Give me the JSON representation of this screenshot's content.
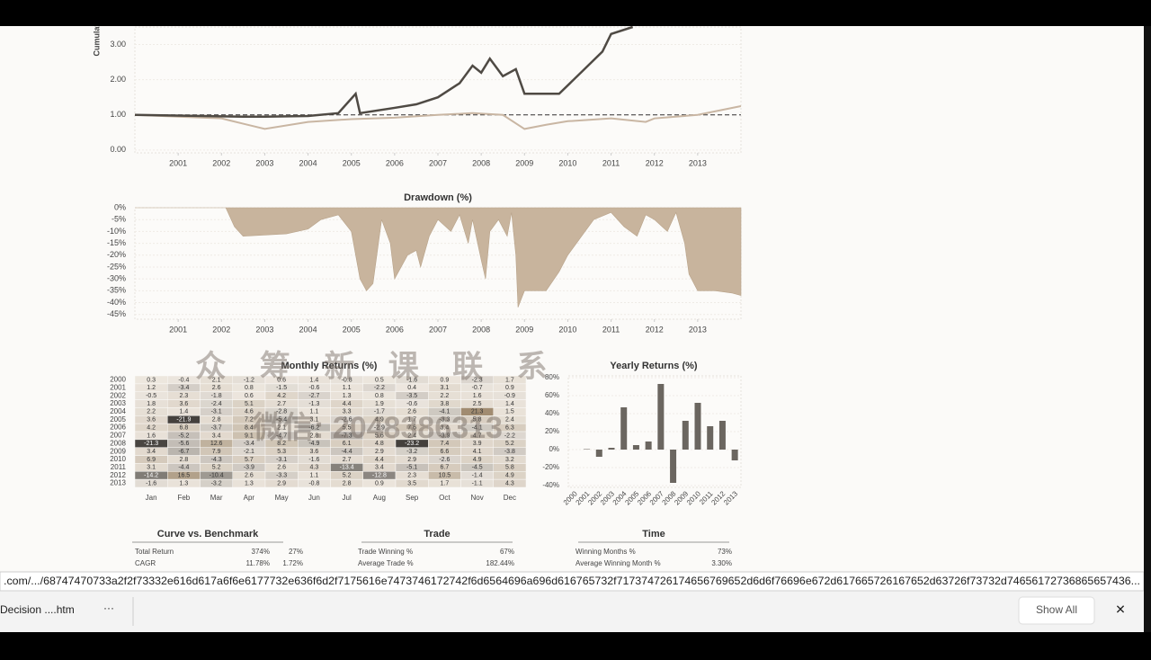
{
  "chart_data": [
    {
      "type": "line",
      "y_label": "Cumulative Returns",
      "xlim": [
        2000,
        2014
      ],
      "xticks": [
        2001,
        2002,
        2003,
        2004,
        2005,
        2006,
        2007,
        2008,
        2009,
        2010,
        2011,
        2012,
        2013
      ],
      "ylim": [
        -0.08,
        3.5
      ],
      "yticks": [
        {
          "value": 0,
          "label": "0.00"
        },
        {
          "value": 1,
          "label": "1.00"
        },
        {
          "value": 2,
          "label": "2.00"
        },
        {
          "value": 3,
          "label": "3.00"
        }
      ],
      "reference_line": 1,
      "grid": true,
      "series": [
        {
          "color": "#4f4a44",
          "x": [
            2000,
            2002.5,
            2003,
            2004,
            2004.7,
            2005.1,
            2005.2,
            2006,
            2006.5,
            2007,
            2007.5,
            2007.8,
            2008,
            2008.2,
            2008.5,
            2008.8,
            2009,
            2009.8,
            2010.3,
            2010.8,
            2011,
            2011.5
          ],
          "values": [
            1.0,
            0.95,
            0.95,
            0.97,
            1.05,
            1.6,
            1.05,
            1.2,
            1.3,
            1.5,
            1.9,
            2.4,
            2.2,
            2.6,
            2.1,
            2.3,
            1.6,
            1.6,
            2.2,
            2.8,
            3.3,
            3.5
          ]
        },
        {
          "color": "#c9b6a3",
          "x": [
            2000,
            2001,
            2002,
            2002.5,
            2003,
            2004,
            2005,
            2006,
            2007,
            2007.8,
            2008.5,
            2009,
            2009.5,
            2010,
            2011,
            2011.8,
            2012,
            2013,
            2014
          ],
          "values": [
            1.0,
            0.95,
            0.9,
            0.75,
            0.6,
            0.8,
            0.88,
            0.92,
            1.0,
            1.05,
            1.0,
            0.6,
            0.72,
            0.82,
            0.9,
            0.8,
            0.9,
            1.0,
            1.25
          ]
        }
      ]
    },
    {
      "type": "area",
      "title": "Drawdown (%)",
      "xlim": [
        2000,
        2014
      ],
      "xticks": [
        2001,
        2002,
        2003,
        2004,
        2005,
        2006,
        2007,
        2008,
        2009,
        2010,
        2011,
        2012,
        2013
      ],
      "ylim": [
        -47,
        0
      ],
      "yticks": [
        {
          "value": 0,
          "label": "0%"
        },
        {
          "value": -5,
          "label": "-5%"
        },
        {
          "value": -10,
          "label": "-10%"
        },
        {
          "value": -15,
          "label": "-15%"
        },
        {
          "value": -20,
          "label": "-20%"
        },
        {
          "value": -25,
          "label": "-25%"
        },
        {
          "value": -30,
          "label": "-30%"
        },
        {
          "value": -35,
          "label": "-35%"
        },
        {
          "value": -40,
          "label": "-40%"
        },
        {
          "value": -45,
          "label": "-45%"
        }
      ],
      "grid": true,
      "color": "#c8b49d",
      "x": [
        2000,
        2002.1,
        2002.3,
        2002.5,
        2003.5,
        2004,
        2004.3,
        2004.7,
        2005,
        2005.2,
        2005.35,
        2005.5,
        2005.7,
        2005.9,
        2006,
        2006.3,
        2006.5,
        2006.6,
        2006.8,
        2007,
        2007.3,
        2007.5,
        2007.7,
        2007.8,
        2008,
        2008.1,
        2008.2,
        2008.4,
        2008.6,
        2008.7,
        2008.8,
        2008.85,
        2009,
        2009.5,
        2009.8,
        2010,
        2010.2,
        2010.4,
        2010.6,
        2011,
        2011.3,
        2011.6,
        2011.8,
        2012,
        2012.3,
        2012.5,
        2012.7,
        2012.8,
        2013,
        2013.4,
        2013.8,
        2014
      ],
      "values": [
        0,
        0,
        -8,
        -12,
        -11,
        -9,
        -5,
        -3,
        -10,
        -30,
        -35,
        -32,
        -5,
        -15,
        -30,
        -20,
        -18,
        -25,
        -12,
        -5,
        -10,
        -3,
        -15,
        -5,
        -22,
        -30,
        -10,
        -5,
        -12,
        -2,
        -20,
        -42,
        -35,
        -35,
        -27,
        -20,
        -15,
        -10,
        -5,
        -2,
        -8,
        -12,
        -3,
        -5,
        -10,
        -2,
        -15,
        -28,
        -35,
        -35,
        -36,
        -37
      ]
    },
    {
      "type": "heatmap",
      "title": "Monthly Returns (%)",
      "rows": [
        "2000",
        "2001",
        "2002",
        "2003",
        "2004",
        "2005",
        "2006",
        "2007",
        "2008",
        "2009",
        "2010",
        "2011",
        "2012",
        "2013"
      ],
      "columns": [
        "Jan",
        "Feb",
        "Mar",
        "Apr",
        "May",
        "Jun",
        "Jul",
        "Aug",
        "Sep",
        "Oct",
        "Nov",
        "Dec"
      ],
      "values": [
        [
          0.3,
          -0.4,
          2.1,
          -1.2,
          0.6,
          1.4,
          -0.8,
          0.5,
          -1.6,
          0.9,
          -2.3,
          1.7
        ],
        [
          1.2,
          -3.4,
          2.6,
          0.8,
          -1.5,
          -0.6,
          1.1,
          -2.2,
          0.4,
          3.1,
          -0.7,
          0.9
        ],
        [
          -0.5,
          2.3,
          -1.8,
          0.6,
          4.2,
          -2.7,
          1.3,
          0.8,
          -3.5,
          2.2,
          1.6,
          -0.9
        ],
        [
          1.8,
          3.6,
          -2.4,
          5.1,
          2.7,
          -1.3,
          4.4,
          1.9,
          -0.6,
          3.8,
          2.5,
          1.4
        ],
        [
          2.2,
          1.4,
          -3.1,
          4.6,
          -2.8,
          1.1,
          3.3,
          -1.7,
          2.6,
          -4.1,
          21.3,
          1.5
        ],
        [
          3.6,
          -21.9,
          2.8,
          7.2,
          -5.4,
          3.1,
          -2.6,
          4.9,
          1.7,
          -3.3,
          5.8,
          2.4
        ],
        [
          4.2,
          6.8,
          -3.7,
          8.4,
          2.1,
          -6.2,
          5.5,
          -2.9,
          7.6,
          3.4,
          -4.1,
          6.3
        ],
        [
          1.6,
          -5.2,
          3.4,
          9.1,
          -4.7,
          2.8,
          -7.3,
          5.6,
          2.4,
          -3.9,
          4.7,
          -2.2
        ],
        [
          -21.3,
          -5.6,
          12.6,
          -3.4,
          8.2,
          -4.9,
          6.1,
          4.8,
          -23.2,
          7.4,
          3.9,
          5.2
        ],
        [
          3.4,
          -6.7,
          7.9,
          -2.1,
          5.3,
          3.6,
          -4.4,
          2.9,
          -3.2,
          6.6,
          4.1,
          -3.8
        ],
        [
          6.9,
          2.8,
          -4.3,
          5.7,
          -3.1,
          -1.6,
          2.7,
          4.4,
          2.9,
          -2.6,
          4.9,
          3.2
        ],
        [
          3.1,
          -4.4,
          5.2,
          -3.9,
          2.6,
          4.3,
          -13.4,
          3.4,
          -5.1,
          6.7,
          -4.5,
          5.8
        ],
        [
          -14.2,
          16.5,
          -10.4,
          2.6,
          -3.3,
          1.1,
          5.2,
          -12.8,
          2.3,
          10.5,
          -1.4,
          4.9
        ],
        [
          -1.6,
          1.3,
          -3.2,
          1.3,
          2.9,
          -0.8,
          2.8,
          0.9,
          3.5,
          1.7,
          -1.1,
          4.3
        ]
      ]
    },
    {
      "type": "bar",
      "title": "Yearly Returns (%)",
      "color": "#6b6660",
      "categories": [
        "2000",
        "2001",
        "2002",
        "2003",
        "2004",
        "2005",
        "2006",
        "2007",
        "2008",
        "2009",
        "2010",
        "2011",
        "2012",
        "2013"
      ],
      "values": [
        0,
        0.5,
        -8,
        2,
        47,
        5,
        9,
        73,
        -37,
        32,
        52,
        26,
        32,
        -12
      ],
      "ylim": [
        -42,
        82
      ],
      "yticks": [
        {
          "value": -40,
          "label": "-40%"
        },
        {
          "value": -20,
          "label": "-20%"
        },
        {
          "value": 0,
          "label": "0%"
        },
        {
          "value": 20,
          "label": "20%"
        },
        {
          "value": 40,
          "label": "40%"
        },
        {
          "value": 60,
          "label": "60%"
        },
        {
          "value": 80,
          "label": "80%"
        }
      ],
      "grid": true
    }
  ],
  "tables": [
    {
      "title": "Curve vs. Benchmark",
      "rows": [
        [
          "Total Return",
          "374%",
          "27%"
        ],
        [
          "CAGR",
          "11.78%",
          "1.72%"
        ]
      ]
    },
    {
      "title": "Trade",
      "rows": [
        [
          "Trade Winning %",
          "67%"
        ],
        [
          "Average Trade %",
          "182.44%"
        ]
      ]
    },
    {
      "title": "Time",
      "rows": [
        [
          "Winning Months %",
          "73%"
        ],
        [
          "Average Winning Month %",
          "3.30%"
        ]
      ]
    }
  ],
  "watermark": [
    "众 筹 新 课 联 系",
    "微信: 2048386313"
  ],
  "status_url": ".com/.../68747470733a2f2f73332e616d617a6f6e6177732e636f6d2f7175616e7473746172742f6d6564696a696d616765732f717374726174656769652d6d6f76696e672d617665726167652d63726f73732d74656172736865657436...",
  "download_bar": {
    "file": "Decision ....htm",
    "menu": "···",
    "show_all": "Show All",
    "close": "✕"
  }
}
